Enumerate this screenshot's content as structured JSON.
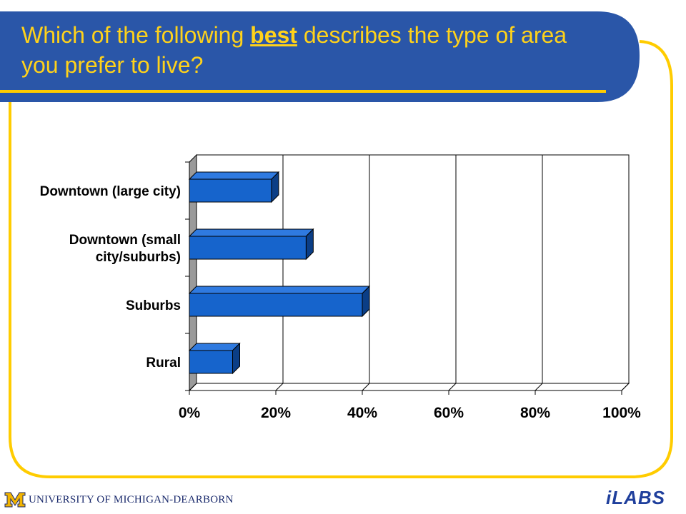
{
  "slide": {
    "title_before": "Which of the following ",
    "title_emphasis": "best",
    "title_after": " describes the type of area you prefer to live?",
    "colors": {
      "header": "#2a56a8",
      "frame": "#ffcc00",
      "bar_front": "#1664cc",
      "bar_top": "#2f7ae0",
      "bar_side": "#0b3e86"
    }
  },
  "chart_data": {
    "type": "bar",
    "orientation": "horizontal",
    "categories": [
      [
        "Downtown (large city)"
      ],
      [
        "Downtown (small",
        "city/suburbs)"
      ],
      [
        "Suburbs"
      ],
      [
        "Rural"
      ]
    ],
    "values": [
      19,
      27,
      40,
      10
    ],
    "xlim": [
      0,
      100
    ],
    "xticks": [
      "0%",
      "20%",
      "40%",
      "60%",
      "80%",
      "100%"
    ],
    "grid": true,
    "style": "3d"
  },
  "footer": {
    "university": "UNIVERSITY OF MICHIGAN-DEARBORN",
    "lab_logo": "iLABS"
  }
}
